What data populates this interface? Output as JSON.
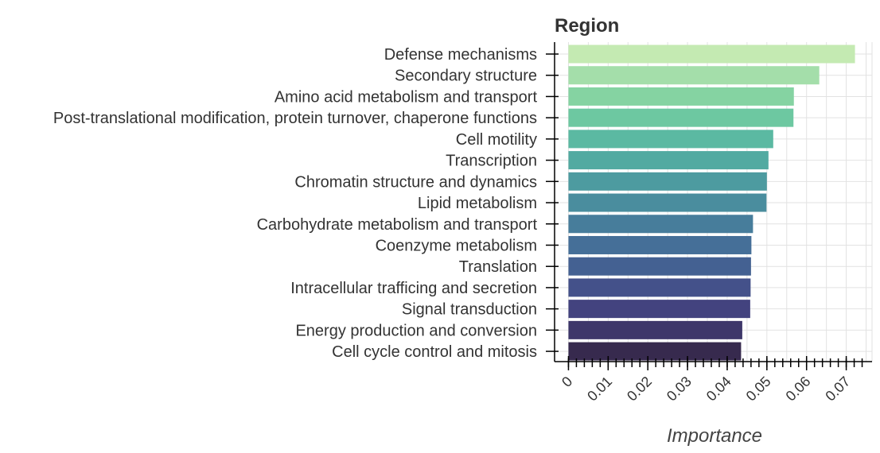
{
  "chart_data": {
    "type": "bar",
    "orientation": "horizontal",
    "title": "Region",
    "xlabel": "Importance",
    "ylabel": "",
    "categories": [
      "Defense mechanisms",
      "Secondary structure",
      "Amino acid metabolism and transport",
      "Post-translational modification, protein turnover, chaperone functions",
      "Cell motility",
      "Transcription",
      "Chromatin structure and dynamics",
      "Lipid metabolism",
      "Carbohydrate metabolism and transport",
      "Coenzyme metabolism",
      "Translation",
      "Intracellular trafficing and secretion",
      "Signal transduction",
      "Energy production and conversion",
      "Cell cycle control and mitosis"
    ],
    "values": [
      0.0722,
      0.0632,
      0.0568,
      0.0567,
      0.0516,
      0.0504,
      0.05,
      0.0499,
      0.0465,
      0.0461,
      0.046,
      0.0459,
      0.0458,
      0.0438,
      0.0435
    ],
    "colors": [
      "#c4eab2",
      "#a4deaa",
      "#85d3a2",
      "#6dc8a1",
      "#5bb9a2",
      "#52aaa1",
      "#4d9ba0",
      "#4a8d9e",
      "#477d9b",
      "#456f98",
      "#446192",
      "#44518a",
      "#43437f",
      "#3e376a",
      "#372a4e"
    ],
    "xlim": [
      -0.0035,
      0.0765
    ],
    "xticks": [
      0,
      0.01,
      0.02,
      0.03,
      0.04,
      0.05,
      0.06,
      0.07
    ],
    "xtick_labels": [
      "0",
      "0.01",
      "0.02",
      "0.03",
      "0.04",
      "0.05",
      "0.06",
      "0.07"
    ],
    "grid": true,
    "legend": "none"
  }
}
